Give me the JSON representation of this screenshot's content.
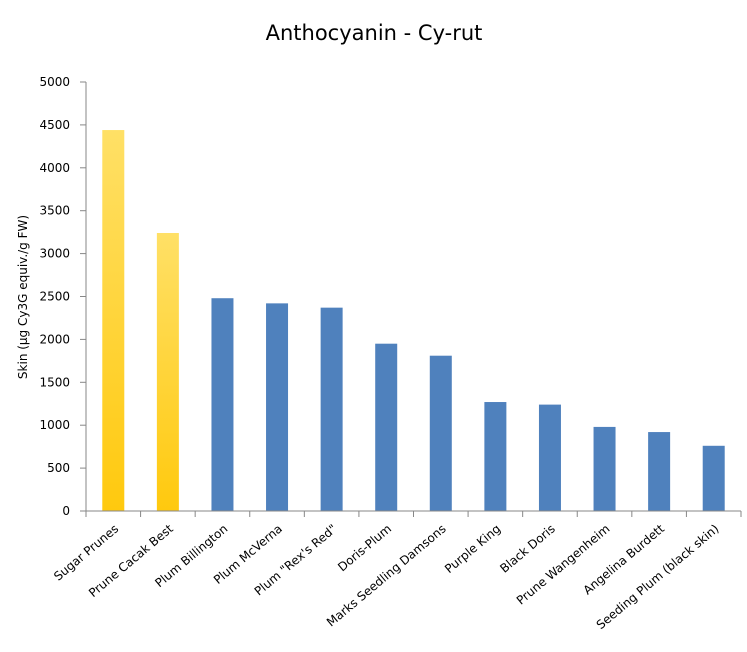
{
  "chart_data": {
    "type": "bar",
    "title": "Anthocyanin - Cy-rut",
    "xlabel": "",
    "ylabel": "Skin (µg Cy3G equiv./g FW)",
    "ylim": [
      0,
      5000
    ],
    "yticks": [
      0,
      500,
      1000,
      1500,
      2000,
      2500,
      3000,
      3500,
      4000,
      4500,
      5000
    ],
    "grid": false,
    "legend": "none",
    "categories": [
      "Sugar Prunes",
      "Prune Cacak Best",
      "Plum Billington",
      "Plum McVerna",
      "Plum \"Rex's Red\"",
      "Doris-Plum",
      "Marks Seedling Damsons",
      "Purple King",
      "Black Doris",
      "Prune Wangenheim",
      "Angelina Burdett",
      "Seeding Plum (black skin)"
    ],
    "values": [
      4440,
      3240,
      2480,
      2420,
      2370,
      1950,
      1810,
      1270,
      1240,
      980,
      920,
      760
    ],
    "colors": {
      "highlight_top": "#FFE066",
      "highlight_bottom": "#FFC90E",
      "default": "#4F81BD",
      "axis": "#878787"
    },
    "highlighted_indices": [
      0,
      1
    ]
  }
}
